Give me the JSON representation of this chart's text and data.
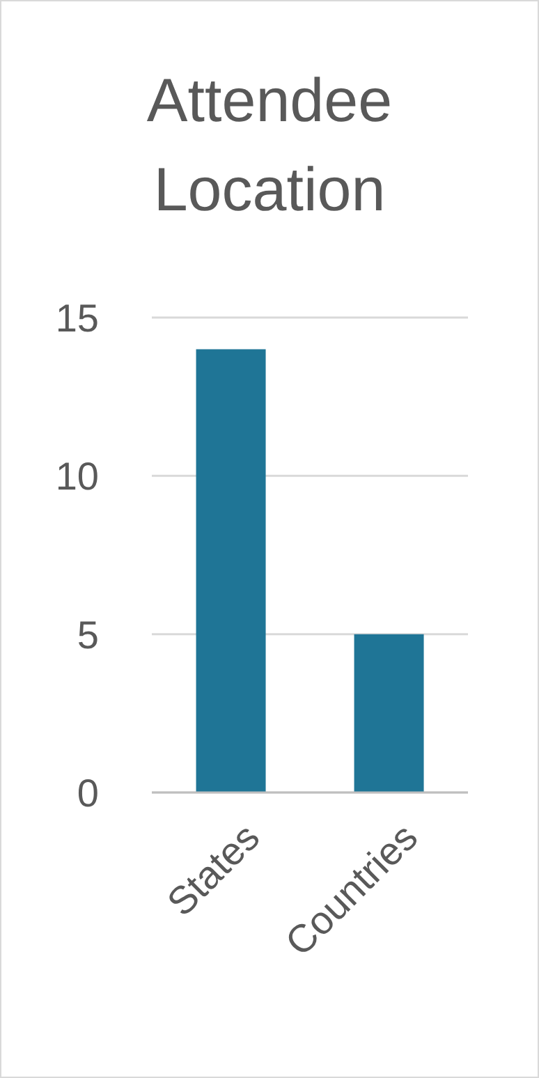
{
  "chart_data": {
    "type": "bar",
    "title": "Attendee Location",
    "categories": [
      "States",
      "Countries"
    ],
    "values": [
      14,
      5
    ],
    "color": "#1f7596",
    "ylim": [
      0,
      15
    ],
    "yticks": [
      0,
      5,
      10,
      15
    ],
    "grid": "y"
  }
}
